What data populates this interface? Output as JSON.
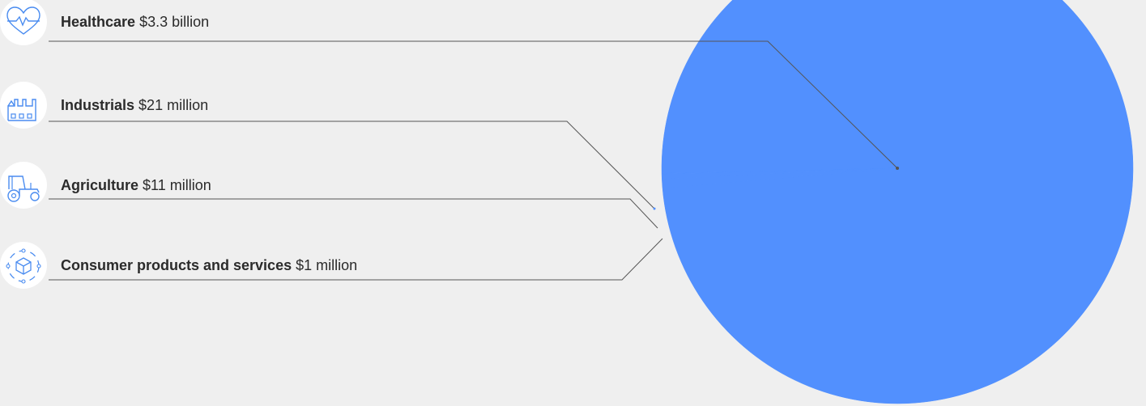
{
  "colors": {
    "background": "#efefef",
    "pie_fill": "#5290fe",
    "leader_line": "#555555",
    "icon_stroke": "#4a8cf0",
    "text": "#2b2b2b"
  },
  "chart_data": {
    "type": "pie",
    "unit": "USD",
    "categories": [
      "Healthcare",
      "Industrials",
      "Agriculture",
      "Consumer products and services"
    ],
    "values": [
      3300000000,
      21000000,
      11000000,
      1000000
    ],
    "value_labels": [
      "$3.3 billion",
      "$21 million",
      "$11 million",
      "$1 million"
    ],
    "icons": [
      "heart-pulse-icon",
      "factory-icon",
      "tractor-icon",
      "product-box-icon"
    ]
  }
}
